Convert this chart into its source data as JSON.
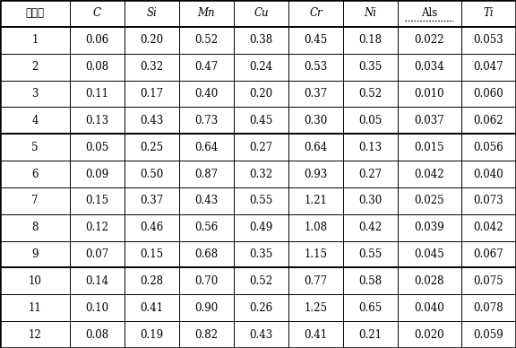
{
  "headers": [
    "实施例",
    "C",
    "Si",
    "Mn",
    "Cu",
    "Cr",
    "Ni",
    "Als",
    "Ti"
  ],
  "rows": [
    [
      "1",
      "0.06",
      "0.20",
      "0.52",
      "0.38",
      "0.45",
      "0.18",
      "0.022",
      "0.053"
    ],
    [
      "2",
      "0.08",
      "0.32",
      "0.47",
      "0.24",
      "0.53",
      "0.35",
      "0.034",
      "0.047"
    ],
    [
      "3",
      "0.11",
      "0.17",
      "0.40",
      "0.20",
      "0.37",
      "0.52",
      "0.010",
      "0.060"
    ],
    [
      "4",
      "0.13",
      "0.43",
      "0.73",
      "0.45",
      "0.30",
      "0.05",
      "0.037",
      "0.062"
    ],
    [
      "5",
      "0.05",
      "0.25",
      "0.64",
      "0.27",
      "0.64",
      "0.13",
      "0.015",
      "0.056"
    ],
    [
      "6",
      "0.09",
      "0.50",
      "0.87",
      "0.32",
      "0.93",
      "0.27",
      "0.042",
      "0.040"
    ],
    [
      "7",
      "0.15",
      "0.37",
      "0.43",
      "0.55",
      "1.21",
      "0.30",
      "0.025",
      "0.073"
    ],
    [
      "8",
      "0.12",
      "0.46",
      "0.56",
      "0.49",
      "1.08",
      "0.42",
      "0.039",
      "0.042"
    ],
    [
      "9",
      "0.07",
      "0.15",
      "0.68",
      "0.35",
      "1.15",
      "0.55",
      "0.045",
      "0.067"
    ],
    [
      "10",
      "0.14",
      "0.28",
      "0.70",
      "0.52",
      "0.77",
      "0.58",
      "0.028",
      "0.075"
    ],
    [
      "11",
      "0.10",
      "0.41",
      "0.90",
      "0.26",
      "1.25",
      "0.65",
      "0.040",
      "0.078"
    ],
    [
      "12",
      "0.08",
      "0.19",
      "0.82",
      "0.43",
      "0.41",
      "0.21",
      "0.020",
      "0.059"
    ]
  ],
  "col_widths_rel": [
    1.15,
    0.9,
    0.9,
    0.9,
    0.9,
    0.9,
    0.9,
    1.05,
    0.9
  ],
  "cell_fontsize": 8.5,
  "bg_color": "#ffffff",
  "border_color": "#000000",
  "thick_hlines_after_row": [
    0,
    4,
    9
  ],
  "als_col_idx": 7,
  "outer_lw": 1.8,
  "thick_lw": 1.4,
  "thin_lw": 0.7
}
